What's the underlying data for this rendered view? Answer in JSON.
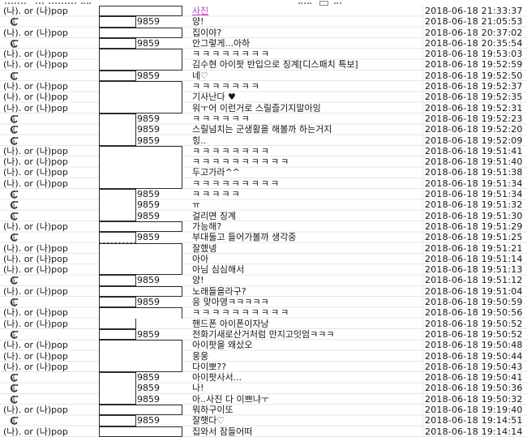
{
  "window": {
    "description": "chat-log table view",
    "columns": [
      "sender",
      "masked-number",
      "message",
      "timestamp"
    ]
  },
  "colors": {
    "link_purple": "#b14ab1",
    "grid_line": "#eae5e5",
    "box_border": "#2b2b2b",
    "text": "#161616"
  },
  "table": {
    "sender_a": "(나). or (나)pop",
    "sender_b_icon": "shrimp-emoji",
    "sender_b_char": "🍤",
    "masked_id": "9859",
    "rows": [
      {
        "sender": "a",
        "box": "wide",
        "join": "single",
        "id_visible": false,
        "link": true,
        "message": "사진",
        "time": "2018-06-18 21:33:37"
      },
      {
        "sender": "b",
        "box": "narrow",
        "join": "single",
        "id_visible": true,
        "message": "양!",
        "time": "2018-06-18 21:05:53"
      },
      {
        "sender": "a",
        "box": "wide",
        "join": "single",
        "id_visible": false,
        "message": "집이야?",
        "time": "2018-06-18 20:37:02"
      },
      {
        "sender": "b",
        "box": "narrow",
        "join": "single",
        "id_visible": true,
        "message": "안그렇게...아하",
        "time": "2018-06-18 20:35:54"
      },
      {
        "sender": "a",
        "box": "wide",
        "join": "start",
        "id_visible": false,
        "kkk": true,
        "message": "ㅋㅋㅋㅋㅋㅋㅋㅋ",
        "time": "2018-06-18 19:53:03"
      },
      {
        "sender": "a",
        "box": "wide",
        "join": "end",
        "id_visible": false,
        "message": "김수현 아이팟 반입으로 징계[디스패치 특보]",
        "time": "2018-06-18 19:52:59"
      },
      {
        "sender": "b",
        "box": "narrow",
        "join": "single",
        "id_visible": true,
        "message": "네♡",
        "time": "2018-06-18 19:52:50"
      },
      {
        "sender": "a",
        "box": "wide",
        "join": "start",
        "id_visible": false,
        "kkk": true,
        "message": "ㅋㅋㅋㅋㅋㅋㅋ",
        "time": "2018-06-18 19:52:37"
      },
      {
        "sender": "a",
        "box": "wide",
        "join": "mid",
        "id_visible": false,
        "message": "기사난다 ♥",
        "time": "2018-06-18 19:52:35"
      },
      {
        "sender": "a",
        "box": "wide",
        "join": "end",
        "id_visible": false,
        "message": "워ㅜ어 이런거로 스릴즐기지말아잉",
        "time": "2018-06-18 19:52:31"
      },
      {
        "sender": "b",
        "box": "narrow",
        "join": "start",
        "id_visible": true,
        "kkk": true,
        "message": "ㅋㅋㅋㅋㅋㅋ",
        "time": "2018-06-18 19:52:23"
      },
      {
        "sender": "b",
        "box": "narrow",
        "join": "mid",
        "id_visible": true,
        "message": "스릴넘치는 군생활을 해볼까 하는거지",
        "time": "2018-06-18 19:52:20"
      },
      {
        "sender": "b",
        "box": "narrow",
        "join": "end",
        "id_visible": true,
        "message": "힝..",
        "time": "2018-06-18 19:52:09"
      },
      {
        "sender": "a",
        "box": "wide",
        "join": "start",
        "id_visible": false,
        "kkk": true,
        "message": "ㅋㅋㅋㅋㅋㅋㅋㅋ",
        "time": "2018-06-18 19:51:41"
      },
      {
        "sender": "a",
        "box": "wide",
        "join": "mid",
        "id_visible": false,
        "kkk": true,
        "message": "ㅋㅋㅋㅋㅋㅋㅋㅋㅋㅋ",
        "time": "2018-06-18 19:51:40"
      },
      {
        "sender": "a",
        "box": "wide",
        "join": "mid",
        "id_visible": false,
        "message": "두고가라^^",
        "time": "2018-06-18 19:51:38"
      },
      {
        "sender": "a",
        "box": "wide",
        "join": "end",
        "id_visible": false,
        "kkk": true,
        "message": "ㅋㅋㅋㅋㅋㅋㅋㅋㅋ",
        "time": "2018-06-18 19:51:34"
      },
      {
        "sender": "b",
        "box": "narrow",
        "join": "start",
        "id_visible": true,
        "kkk": true,
        "message": "ㅋㅋㅋㅋㅋ",
        "time": "2018-06-18 19:51:34"
      },
      {
        "sender": "b",
        "box": "narrow",
        "join": "mid",
        "id_visible": true,
        "message": "ㅠ",
        "time": "2018-06-18 19:51:32"
      },
      {
        "sender": "b",
        "box": "narrow",
        "join": "end",
        "id_visible": true,
        "message": "걸리면 징계",
        "time": "2018-06-18 19:51:30"
      },
      {
        "sender": "a",
        "box": "wide",
        "join": "single",
        "id_visible": false,
        "message": "가능해?",
        "time": "2018-06-18 19:51:29"
      },
      {
        "sender": "b",
        "box": "narrow",
        "join": "single",
        "dashed": true,
        "id_visible": true,
        "message": "부대둘고 들어가볼까 생각중",
        "time": "2018-06-18 19:51:25"
      },
      {
        "sender": "a",
        "box": "wide",
        "join": "start",
        "id_visible": false,
        "message": "잘했넹",
        "time": "2018-06-18 19:51:21"
      },
      {
        "sender": "a",
        "box": "wide",
        "join": "mid",
        "id_visible": false,
        "message": "아아",
        "time": "2018-06-18 19:51:14"
      },
      {
        "sender": "a",
        "box": "wide",
        "join": "end",
        "id_visible": false,
        "message": "아님 심심해서",
        "time": "2018-06-18 19:51:13"
      },
      {
        "sender": "b",
        "box": "narrow",
        "join": "single",
        "id_visible": true,
        "message": "양!",
        "time": "2018-06-18 19:51:12"
      },
      {
        "sender": "a",
        "box": "wide",
        "join": "single",
        "id_visible": false,
        "message": "노래들을라구?",
        "time": "2018-06-18 19:51:04"
      },
      {
        "sender": "b",
        "box": "narrow",
        "join": "single",
        "id_visible": true,
        "message": "응 맞아영ㅋㅋㅋㅋㅋ",
        "time": "2018-06-18 19:50:59"
      },
      {
        "sender": "a",
        "box": "wide",
        "join": "start",
        "id_visible": false,
        "kkk": true,
        "message": "ㅋㅋㅋㅋㅋㅋㅋㅋㅋㅋ",
        "time": "2018-06-18 19:50:56"
      },
      {
        "sender": "a",
        "box": "narrow",
        "join": "end",
        "id_visible": false,
        "message": "핸드폰 아이폰이자낭",
        "time": "2018-06-18 19:50:52"
      },
      {
        "sender": "b",
        "box": "narrow",
        "join": "single",
        "id_visible": true,
        "message": "전화기새로산거처럼 만지고잇엄ㅋㅋㅋ",
        "time": "2018-06-18 19:50:52"
      },
      {
        "sender": "a",
        "box": "wide",
        "join": "start",
        "id_visible": false,
        "message": "아이팟을 왜샀오",
        "time": "2018-06-18 19:50:48"
      },
      {
        "sender": "a",
        "box": "wide",
        "join": "mid",
        "id_visible": false,
        "message": "웅웅",
        "time": "2018-06-18 19:50:44"
      },
      {
        "sender": "a",
        "box": "wide",
        "join": "end",
        "id_visible": false,
        "message": "다이뽀??",
        "time": "2018-06-18 19:50:43"
      },
      {
        "sender": "b",
        "box": "narrow",
        "join": "start",
        "id_visible": true,
        "message": "아이팟사서...",
        "time": "2018-06-18 19:50:41"
      },
      {
        "sender": "b",
        "box": "narrow",
        "join": "mid",
        "id_visible": true,
        "message": "나!",
        "time": "2018-06-18 19:50:36"
      },
      {
        "sender": "b",
        "box": "narrow",
        "join": "end",
        "id_visible": true,
        "message": "아..사진 다 이쁘냐ㅜ",
        "time": "2018-06-18 19:50:32"
      },
      {
        "sender": "a",
        "box": "wide",
        "join": "single",
        "id_visible": false,
        "message": "뭐하구이또",
        "time": "2018-06-18 19:19:40"
      },
      {
        "sender": "b",
        "box": "narrow",
        "join": "single",
        "id_visible": true,
        "message": "잘햇다♡",
        "time": "2018-06-18 19:14:51"
      },
      {
        "sender": "a",
        "box": "wide",
        "join": "single",
        "id_visible": false,
        "message": "집와서 잠들어떠",
        "time": "2018-06-18 19:14:14"
      }
    ]
  }
}
